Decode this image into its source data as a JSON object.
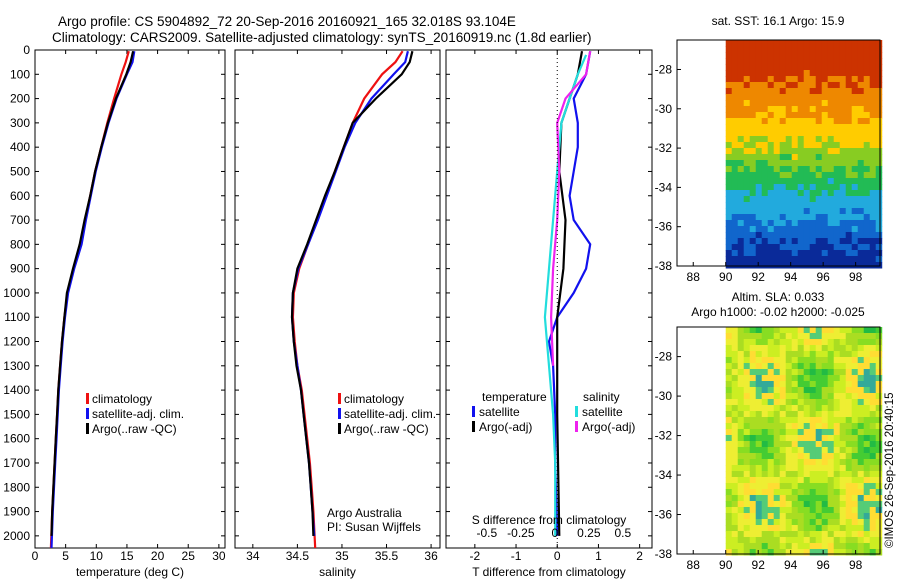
{
  "header": {
    "line1": "Argo profile: CS 5904892_72 20-Sep-2016 20160921_165 32.018S 93.104E",
    "line2": "Climatology: CARS2009. Satellite-adjusted climatology: synTS_20160919.nc (1.8d earlier)"
  },
  "footer_stamp": "©IMOS 26-Sep-2016 20:40:15",
  "credits": {
    "line1": "Argo Australia",
    "line2": "PI: Susan Wijffels"
  },
  "colors": {
    "climatology": "#ee1111",
    "satellite": "#1111ee",
    "argo": "#000000",
    "cyan": "#22dddd",
    "magenta": "#ee22ee"
  },
  "chart_data": [
    {
      "type": "line",
      "id": "temperature",
      "xlabel": "temperature (deg C)",
      "xlim": [
        0,
        31
      ],
      "xticks": [
        0,
        5,
        10,
        15,
        20,
        25,
        30
      ],
      "ylim": [
        0,
        2050
      ],
      "yticks": [
        0,
        100,
        200,
        300,
        400,
        500,
        600,
        700,
        800,
        900,
        1000,
        1100,
        1200,
        1300,
        1400,
        1500,
        1600,
        1700,
        1800,
        1900,
        2000
      ],
      "y_reversed": true,
      "legend": [
        "climatology",
        "satellite-adj. clim.",
        "Argo(..raw -QC)"
      ],
      "series": [
        {
          "name": "climatology",
          "color": "red",
          "points": [
            [
              15.3,
              5
            ],
            [
              14.8,
              50
            ],
            [
              14.1,
              100
            ],
            [
              12.9,
              200
            ],
            [
              11.8,
              300
            ],
            [
              10.8,
              400
            ],
            [
              9.8,
              500
            ],
            [
              9.0,
              600
            ],
            [
              8.2,
              700
            ],
            [
              7.4,
              800
            ],
            [
              6.3,
              900
            ],
            [
              5.3,
              1000
            ],
            [
              4.8,
              1100
            ],
            [
              4.4,
              1200
            ],
            [
              4.1,
              1300
            ],
            [
              3.8,
              1400
            ],
            [
              3.6,
              1500
            ],
            [
              3.4,
              1600
            ],
            [
              3.2,
              1700
            ],
            [
              3.0,
              1800
            ],
            [
              2.8,
              1900
            ],
            [
              2.6,
              2050
            ]
          ]
        },
        {
          "name": "satellite-adj. clim.",
          "color": "blue",
          "points": [
            [
              16.2,
              5
            ],
            [
              15.9,
              50
            ],
            [
              15.0,
              100
            ],
            [
              13.3,
              200
            ],
            [
              12.0,
              300
            ],
            [
              10.9,
              400
            ],
            [
              9.9,
              500
            ],
            [
              9.1,
              600
            ],
            [
              8.3,
              700
            ],
            [
              7.6,
              800
            ],
            [
              6.4,
              900
            ],
            [
              5.4,
              1000
            ],
            [
              4.9,
              1100
            ],
            [
              4.5,
              1200
            ],
            [
              4.2,
              1300
            ],
            [
              3.9,
              1400
            ],
            [
              3.7,
              1500
            ],
            [
              3.5,
              1600
            ],
            [
              3.3,
              1700
            ],
            [
              3.1,
              1800
            ],
            [
              2.9,
              1900
            ],
            [
              2.7,
              2050
            ]
          ]
        },
        {
          "name": "Argo(..raw -QC)",
          "color": "black",
          "points": [
            [
              16.0,
              5
            ],
            [
              15.6,
              50
            ],
            [
              14.9,
              100
            ],
            [
              13.2,
              200
            ],
            [
              11.9,
              300
            ],
            [
              10.8,
              400
            ],
            [
              9.8,
              500
            ],
            [
              9.0,
              600
            ],
            [
              8.1,
              700
            ],
            [
              7.3,
              800
            ],
            [
              6.2,
              900
            ],
            [
              5.2,
              1000
            ],
            [
              4.8,
              1100
            ],
            [
              4.4,
              1200
            ],
            [
              4.1,
              1300
            ],
            [
              3.8,
              1400
            ],
            [
              3.6,
              1500
            ],
            [
              3.4,
              1600
            ],
            [
              3.2,
              1700
            ],
            [
              3.0,
              1800
            ],
            [
              2.8,
              1900
            ],
            [
              2.7,
              2000
            ]
          ]
        }
      ]
    },
    {
      "type": "line",
      "id": "salinity",
      "xlabel": "salinity",
      "xlim": [
        33.8,
        36.1
      ],
      "xticks": [
        34,
        34.5,
        35,
        35.5,
        36
      ],
      "ylim": [
        0,
        2050
      ],
      "y_reversed": true,
      "legend": [
        "climatology",
        "satellite-adj. clim.",
        "Argo(..raw -QC)"
      ],
      "series": [
        {
          "name": "climatology",
          "color": "red",
          "points": [
            [
              35.68,
              5
            ],
            [
              35.6,
              50
            ],
            [
              35.45,
              100
            ],
            [
              35.25,
              200
            ],
            [
              35.12,
              300
            ],
            [
              35.02,
              400
            ],
            [
              34.92,
              500
            ],
            [
              34.82,
              600
            ],
            [
              34.72,
              700
            ],
            [
              34.62,
              800
            ],
            [
              34.52,
              900
            ],
            [
              34.46,
              1000
            ],
            [
              34.45,
              1100
            ],
            [
              34.47,
              1200
            ],
            [
              34.5,
              1300
            ],
            [
              34.55,
              1400
            ],
            [
              34.58,
              1500
            ],
            [
              34.61,
              1600
            ],
            [
              34.64,
              1700
            ],
            [
              34.66,
              1800
            ],
            [
              34.68,
              1900
            ],
            [
              34.7,
              2050
            ]
          ]
        },
        {
          "name": "satellite-adj. clim.",
          "color": "blue",
          "points": [
            [
              35.74,
              5
            ],
            [
              35.71,
              50
            ],
            [
              35.58,
              100
            ],
            [
              35.33,
              200
            ],
            [
              35.15,
              300
            ],
            [
              35.03,
              400
            ],
            [
              34.93,
              500
            ],
            [
              34.83,
              600
            ],
            [
              34.73,
              700
            ],
            [
              34.62,
              800
            ],
            [
              34.51,
              900
            ],
            [
              34.45,
              1000
            ],
            [
              34.44,
              1100
            ],
            [
              34.46,
              1200
            ],
            [
              34.5,
              1300
            ],
            [
              34.54,
              1400
            ],
            [
              34.57,
              1500
            ],
            [
              34.6,
              1600
            ],
            [
              34.63,
              1700
            ],
            [
              34.65,
              1800
            ],
            [
              34.67,
              1900
            ],
            [
              34.69,
              2000
            ]
          ]
        },
        {
          "name": "Argo(..raw -QC)",
          "color": "black",
          "points": [
            [
              35.79,
              5
            ],
            [
              35.76,
              50
            ],
            [
              35.67,
              100
            ],
            [
              35.38,
              200
            ],
            [
              35.12,
              300
            ],
            [
              35.02,
              400
            ],
            [
              34.92,
              500
            ],
            [
              34.81,
              600
            ],
            [
              34.71,
              700
            ],
            [
              34.61,
              800
            ],
            [
              34.5,
              900
            ],
            [
              34.45,
              1000
            ],
            [
              34.44,
              1100
            ],
            [
              34.46,
              1200
            ],
            [
              34.49,
              1300
            ],
            [
              34.54,
              1400
            ],
            [
              34.57,
              1500
            ],
            [
              34.6,
              1600
            ],
            [
              34.63,
              1700
            ],
            [
              34.65,
              1800
            ],
            [
              34.67,
              1900
            ],
            [
              34.68,
              2000
            ]
          ]
        }
      ]
    },
    {
      "type": "line",
      "id": "difference",
      "xlabel": "T difference from climatology",
      "xlabel2": "S difference from climatology",
      "xlim": [
        -2.7,
        2.3
      ],
      "xticks": [
        -2,
        -1,
        0,
        1,
        2
      ],
      "xticks2": [
        -0.5,
        -0.25,
        0,
        0.25,
        0.5
      ],
      "ylim": [
        0,
        2050
      ],
      "y_reversed": true,
      "legend": {
        "temperature": "temperature",
        "salinity": "salinity",
        "sat": "satellite",
        "argo": "Argo(-adj)"
      },
      "series": [
        {
          "name": "temperature satellite",
          "color": "blue",
          "points": [
            [
              0.8,
              5
            ],
            [
              0.7,
              100
            ],
            [
              0.4,
              200
            ],
            [
              0.5,
              300
            ],
            [
              0.5,
              400
            ],
            [
              0.4,
              500
            ],
            [
              0.3,
              600
            ],
            [
              0.4,
              700
            ],
            [
              0.8,
              800
            ],
            [
              0.7,
              900
            ],
            [
              0.4,
              1000
            ],
            [
              0.0,
              1100
            ],
            [
              -0.2,
              1200
            ],
            [
              -0.1,
              1300
            ],
            [
              -0.05,
              1500
            ],
            [
              -0.05,
              1700
            ],
            [
              0.0,
              2000
            ]
          ]
        },
        {
          "name": "temperature Argo(-adj)",
          "color": "black",
          "points": [
            [
              0.6,
              5
            ],
            [
              0.5,
              100
            ],
            [
              0.3,
              200
            ],
            [
              0.1,
              300
            ],
            [
              0.05,
              500
            ],
            [
              0.2,
              700
            ],
            [
              0.15,
              900
            ],
            [
              0.0,
              1100
            ],
            [
              0.0,
              1300
            ],
            [
              0.0,
              1500
            ],
            [
              0.05,
              2000
            ]
          ]
        },
        {
          "name": "salinity satellite",
          "color": "cyan",
          "points": [
            [
              0.7,
              20
            ],
            [
              0.5,
              100
            ],
            [
              0.3,
              200
            ],
            [
              0.1,
              300
            ],
            [
              0.0,
              500
            ],
            [
              -0.1,
              700
            ],
            [
              -0.2,
              900
            ],
            [
              -0.3,
              1100
            ],
            [
              -0.2,
              1300
            ],
            [
              -0.1,
              1500
            ],
            [
              -0.05,
              1700
            ],
            [
              -0.05,
              2000
            ]
          ]
        },
        {
          "name": "salinity Argo(-adj)",
          "color": "magenta",
          "points": [
            [
              0.8,
              5
            ],
            [
              0.7,
              100
            ],
            [
              0.2,
              200
            ],
            [
              0.0,
              300
            ],
            [
              0.05,
              500
            ],
            [
              0.0,
              700
            ],
            [
              -0.1,
              900
            ],
            [
              -0.15,
              1100
            ],
            [
              -0.1,
              1300
            ]
          ]
        }
      ]
    },
    {
      "type": "heatmap",
      "id": "sst_map",
      "title": "sat. SST: 16.1  Argo: 15.9",
      "xticks": [
        88,
        90,
        92,
        94,
        96,
        98
      ],
      "yticks": [
        -28,
        -30,
        -32,
        -34,
        -36,
        -38
      ],
      "xlim": [
        87,
        99.5
      ],
      "ylim": [
        -38,
        -26.5
      ],
      "data_xlim": [
        90,
        99.5
      ]
    },
    {
      "type": "heatmap",
      "id": "sla_map",
      "title": "Altim. SLA: 0.033",
      "subtitle": "Argo h1000: -0.02  h2000: -0.025",
      "xticks": [
        88,
        90,
        92,
        94,
        96,
        98
      ],
      "yticks": [
        -28,
        -30,
        -32,
        -34,
        -36,
        -38
      ],
      "xlim": [
        87,
        99.5
      ],
      "ylim": [
        -38,
        -26.5
      ],
      "data_xlim": [
        90,
        99.5
      ]
    }
  ]
}
